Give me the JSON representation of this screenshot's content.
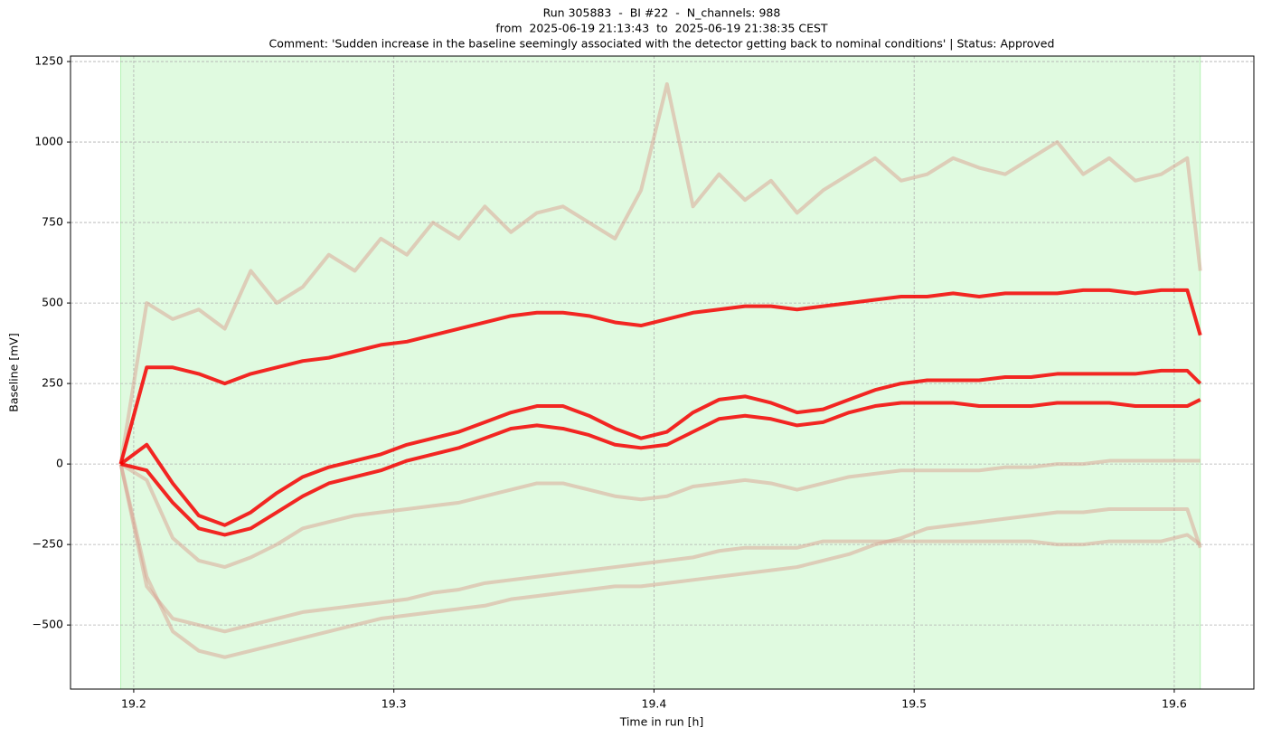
{
  "chart_data": {
    "type": "line",
    "title": "Run 305883  -  BI #22  -  N_channels: 988",
    "subtitle": [
      "from  2025-06-19 21:13:43  to  2025-06-19 21:38:35 CEST",
      "Comment: 'Sudden increase in the baseline seemingly associated with the detector getting back to nominal conditions' | Status: Approved"
    ],
    "x_label": "Time in run [h]",
    "y_label": "Baseline [mV]",
    "xlim": [
      19.1757,
      19.6306
    ],
    "ylim": [
      -699,
      1267
    ],
    "xticks": [
      19.2,
      19.3,
      19.4,
      19.5,
      19.6
    ],
    "yticks": [
      {
        "value": -500,
        "label": "−500"
      },
      {
        "value": -250,
        "label": "−250"
      },
      0,
      250,
      500,
      750,
      1000,
      1250
    ],
    "grid": true,
    "span": [
      19.195,
      19.61
    ],
    "span_color": "#90ee90",
    "x": [
      19.195,
      19.205,
      19.215,
      19.225,
      19.235,
      19.245,
      19.255,
      19.265,
      19.275,
      19.285,
      19.295,
      19.305,
      19.315,
      19.325,
      19.335,
      19.345,
      19.355,
      19.365,
      19.375,
      19.385,
      19.395,
      19.405,
      19.415,
      19.425,
      19.435,
      19.445,
      19.455,
      19.465,
      19.475,
      19.485,
      19.495,
      19.505,
      19.515,
      19.525,
      19.535,
      19.545,
      19.555,
      19.565,
      19.575,
      19.585,
      19.595,
      19.605,
      19.61
    ],
    "series": [
      {
        "color": "#d9a090",
        "values": [
          0,
          -350,
          -520,
          -580,
          -600,
          -580,
          -560,
          -540,
          -520,
          -500,
          -480,
          -470,
          -460,
          -450,
          -440,
          -420,
          -410,
          -400,
          -390,
          -380,
          -380,
          -370,
          -360,
          -350,
          -340,
          -330,
          -320,
          -300,
          -280,
          -250,
          -230,
          -200,
          -190,
          -180,
          -170,
          -160,
          -150,
          -150,
          -140,
          -140,
          -140,
          -140,
          -260
        ]
      },
      {
        "color": "#d9a090",
        "values": [
          0,
          -380,
          -480,
          -500,
          -520,
          -500,
          -480,
          -460,
          -450,
          -440,
          -430,
          -420,
          -400,
          -390,
          -370,
          -360,
          -350,
          -340,
          -330,
          -320,
          -310,
          -300,
          -290,
          -270,
          -260,
          -260,
          -260,
          -240,
          -240,
          -240,
          -240,
          -240,
          -240,
          -240,
          -240,
          -240,
          -250,
          -250,
          -240,
          -240,
          -240,
          -220,
          -250
        ]
      },
      {
        "color": "#d9a090",
        "values": [
          0,
          -50,
          -230,
          -300,
          -320,
          -290,
          -250,
          -200,
          -180,
          -160,
          -150,
          -140,
          -130,
          -120,
          -100,
          -80,
          -60,
          -60,
          -80,
          -100,
          -110,
          -100,
          -70,
          -60,
          -50,
          -60,
          -80,
          -60,
          -40,
          -30,
          -20,
          -20,
          -20,
          -20,
          -10,
          -10,
          0,
          0,
          10,
          10,
          10,
          10,
          10
        ]
      },
      {
        "color": "#d9a090",
        "values": [
          0,
          500,
          450,
          480,
          420,
          600,
          500,
          550,
          650,
          600,
          700,
          650,
          750,
          700,
          800,
          720,
          780,
          800,
          750,
          700,
          850,
          1180,
          800,
          900,
          820,
          880,
          780,
          850,
          900,
          950,
          880,
          900,
          950,
          920,
          900,
          950,
          1000,
          900,
          950,
          880,
          900,
          950,
          600
        ]
      },
      {
        "color": "#f50000",
        "values": [
          0,
          -20,
          -120,
          -200,
          -220,
          -200,
          -150,
          -100,
          -60,
          -40,
          -20,
          10,
          30,
          50,
          80,
          110,
          120,
          110,
          90,
          60,
          50,
          60,
          100,
          140,
          150,
          140,
          120,
          130,
          160,
          180,
          190,
          190,
          190,
          180,
          180,
          180,
          190,
          190,
          190,
          180,
          180,
          180,
          200
        ]
      },
      {
        "color": "#f50000",
        "values": [
          0,
          60,
          -60,
          -160,
          -190,
          -150,
          -90,
          -40,
          -10,
          10,
          30,
          60,
          80,
          100,
          130,
          160,
          180,
          180,
          150,
          110,
          80,
          100,
          160,
          200,
          210,
          190,
          160,
          170,
          200,
          230,
          250,
          260,
          260,
          260,
          270,
          270,
          280,
          280,
          280,
          280,
          290,
          290,
          250
        ]
      },
      {
        "color": "#f50000",
        "values": [
          0,
          300,
          300,
          280,
          250,
          280,
          300,
          320,
          330,
          350,
          370,
          380,
          400,
          420,
          440,
          460,
          470,
          470,
          460,
          440,
          430,
          450,
          470,
          480,
          490,
          490,
          480,
          490,
          500,
          510,
          520,
          520,
          530,
          520,
          530,
          530,
          530,
          540,
          540,
          530,
          540,
          540,
          400
        ]
      }
    ]
  }
}
